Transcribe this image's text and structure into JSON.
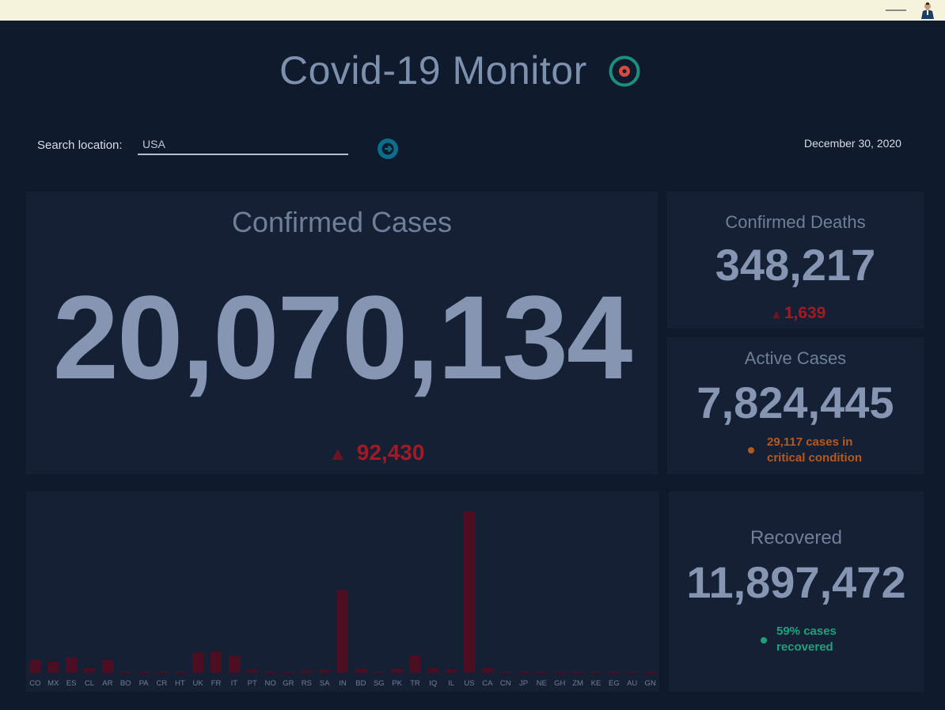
{
  "app": {
    "title": "Covid-19 Monitor",
    "logo_icon": "target-icon"
  },
  "search": {
    "label": "Search location:",
    "value": "USA",
    "submit_icon": "arrow-right-icon"
  },
  "date": "December 30, 2020",
  "confirmed": {
    "title": "Confirmed Cases",
    "value": "20,070,134",
    "delta": "92,430"
  },
  "deaths": {
    "title": "Confirmed Deaths",
    "value": "348,217",
    "delta": "1,639"
  },
  "active": {
    "title": "Active Cases",
    "value": "7,824,445",
    "note": "29,117 cases in critical condition"
  },
  "recovered": {
    "title": "Recovered",
    "value": "11,897,472",
    "note": "59% cases recovered"
  },
  "colors": {
    "background": "#0f1a2c",
    "panel": "#152035",
    "bar": "#4e0e22",
    "increase": "#a11a24",
    "critical": "#b5591c",
    "recovered": "#1aa37c",
    "button": "#0a6e8c"
  },
  "chart_data": {
    "type": "bar",
    "categories": [
      "CO",
      "MX",
      "ES",
      "CL",
      "AR",
      "BO",
      "PA",
      "CR",
      "HT",
      "UK",
      "FR",
      "IT",
      "PT",
      "NO",
      "GR",
      "RS",
      "SA",
      "IN",
      "BD",
      "SG",
      "PK",
      "TR",
      "IQ",
      "IL",
      "US",
      "CA",
      "CN",
      "JP",
      "NE",
      "GH",
      "ZM",
      "KE",
      "EG",
      "AU",
      "GN"
    ],
    "values": [
      1.6,
      1.4,
      1.9,
      0.6,
      1.6,
      0.2,
      0.2,
      0.2,
      0.01,
      2.5,
      2.6,
      2.1,
      0.4,
      0.05,
      0.14,
      0.3,
      0.36,
      10.3,
      0.5,
      0.06,
      0.48,
      2.2,
      0.6,
      0.42,
      20.1,
      0.58,
      0.09,
      0.23,
      0.003,
      0.05,
      0.02,
      0.1,
      0.14,
      0.03,
      0.01
    ],
    "ylim": [
      0,
      20.1
    ],
    "grid": false,
    "legend": "none"
  }
}
